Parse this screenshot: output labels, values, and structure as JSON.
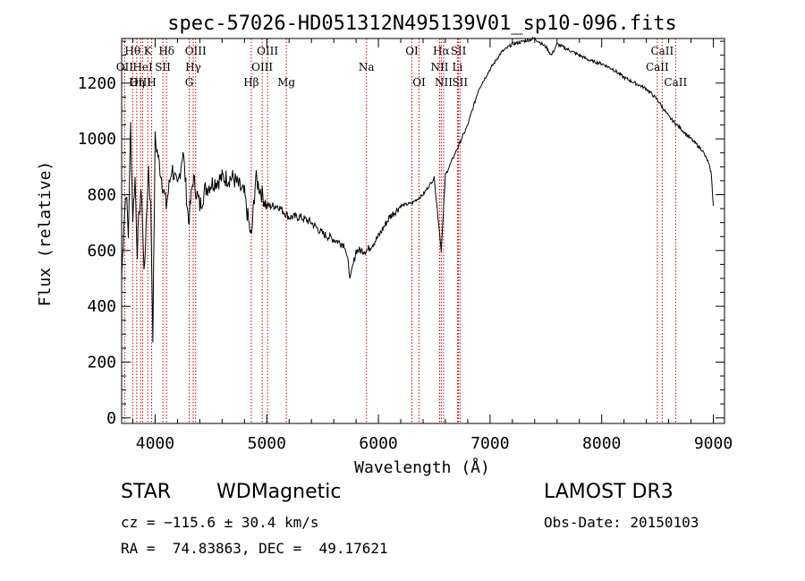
{
  "chart_data": {
    "type": "line",
    "title": "spec-57026-HD051312N495139V01_sp10-096.fits",
    "xlabel": "Wavelength (Å)",
    "ylabel": "Flux (relative)",
    "xlim": [
      3700,
      9100
    ],
    "ylim": [
      -20,
      1360
    ],
    "xticks": [
      4000,
      5000,
      6000,
      7000,
      8000,
      9000
    ],
    "yticks": [
      0,
      200,
      400,
      600,
      800,
      1000,
      1200
    ],
    "series": [
      {
        "name": "spectrum",
        "x": [
          3700,
          3720,
          3740,
          3760,
          3780,
          3800,
          3820,
          3840,
          3860,
          3880,
          3900,
          3920,
          3940,
          3960,
          3980,
          4000,
          4050,
          4100,
          4150,
          4200,
          4250,
          4300,
          4340,
          4400,
          4450,
          4500,
          4600,
          4700,
          4800,
          4861,
          4900,
          5000,
          5100,
          5200,
          5300,
          5400,
          5500,
          5600,
          5700,
          5750,
          5800,
          5900,
          6000,
          6100,
          6200,
          6300,
          6400,
          6500,
          6563,
          6600,
          6700,
          6800,
          6900,
          7000,
          7100,
          7200,
          7300,
          7400,
          7500,
          7550,
          7600,
          7700,
          7800,
          7900,
          8000,
          8100,
          8200,
          8300,
          8400,
          8500,
          8600,
          8700,
          8800,
          8900,
          8950,
          8980,
          9000
        ],
        "y": [
          500,
          700,
          820,
          650,
          1050,
          720,
          860,
          600,
          760,
          800,
          520,
          680,
          900,
          760,
          300,
          1000,
          880,
          760,
          900,
          820,
          960,
          700,
          860,
          760,
          820,
          840,
          860,
          860,
          800,
          640,
          860,
          760,
          760,
          720,
          720,
          700,
          660,
          640,
          620,
          500,
          600,
          600,
          650,
          720,
          760,
          770,
          800,
          860,
          600,
          870,
          960,
          1050,
          1180,
          1250,
          1310,
          1340,
          1350,
          1360,
          1330,
          1300,
          1340,
          1320,
          1300,
          1280,
          1270,
          1250,
          1220,
          1200,
          1180,
          1140,
          1080,
          1040,
          1000,
          960,
          920,
          880,
          760
        ]
      }
    ],
    "lines": [
      {
        "name": "Hθ",
        "wl": 3798,
        "row": 1
      },
      {
        "name": "OII",
        "wl": 3727,
        "row": 2
      },
      {
        "name": "OIII",
        "wl": 3869,
        "row": 3
      },
      {
        "name": "K",
        "wl": 3934,
        "row": 1
      },
      {
        "name": "HeI",
        "wl": 3889,
        "row": 2
      },
      {
        "name": "Hη",
        "wl": 3835,
        "row": 3
      },
      {
        "name": "SII",
        "wl": 4069,
        "row": 2
      },
      {
        "name": "H",
        "wl": 3969,
        "row": 3
      },
      {
        "name": "Hδ",
        "wl": 4102,
        "row": 1
      },
      {
        "name": "OIII",
        "wl": 4363,
        "row": 1
      },
      {
        "name": "Hγ",
        "wl": 4341,
        "row": 2
      },
      {
        "name": "G",
        "wl": 4305,
        "row": 3
      },
      {
        "name": "OIII",
        "wl": 5007,
        "row": 1
      },
      {
        "name": "OIII",
        "wl": 4959,
        "row": 2
      },
      {
        "name": "Hβ",
        "wl": 4861,
        "row": 3
      },
      {
        "name": "Mg",
        "wl": 5175,
        "row": 3
      },
      {
        "name": "Na",
        "wl": 5893,
        "row": 2
      },
      {
        "name": "OI",
        "wl": 6300,
        "row": 1
      },
      {
        "name": "OI",
        "wl": 6364,
        "row": 3
      },
      {
        "name": "Hα",
        "wl": 6563,
        "row": 1
      },
      {
        "name": "NII",
        "wl": 6548,
        "row": 2
      },
      {
        "name": "NII",
        "wl": 6584,
        "row": 3
      },
      {
        "name": "SII",
        "wl": 6717,
        "row": 1
      },
      {
        "name": "Li",
        "wl": 6708,
        "row": 2
      },
      {
        "name": "SII",
        "wl": 6731,
        "row": 3
      },
      {
        "name": "CaII",
        "wl": 8542,
        "row": 1
      },
      {
        "name": "CaII",
        "wl": 8498,
        "row": 2
      },
      {
        "name": "CaII",
        "wl": 8662,
        "row": 3
      }
    ]
  },
  "info": {
    "class": "STAR",
    "subclass": "WDMagnetic",
    "survey": "LAMOST DR3",
    "cz": "cz = −115.6 ± 30.4 km/s",
    "obs_date": "Obs-Date: 20150103",
    "radec": "RA =  74.83863, DEC =  49.17621"
  },
  "colors": {
    "line_marker": "#cc0000",
    "spectrum": "#000000"
  }
}
